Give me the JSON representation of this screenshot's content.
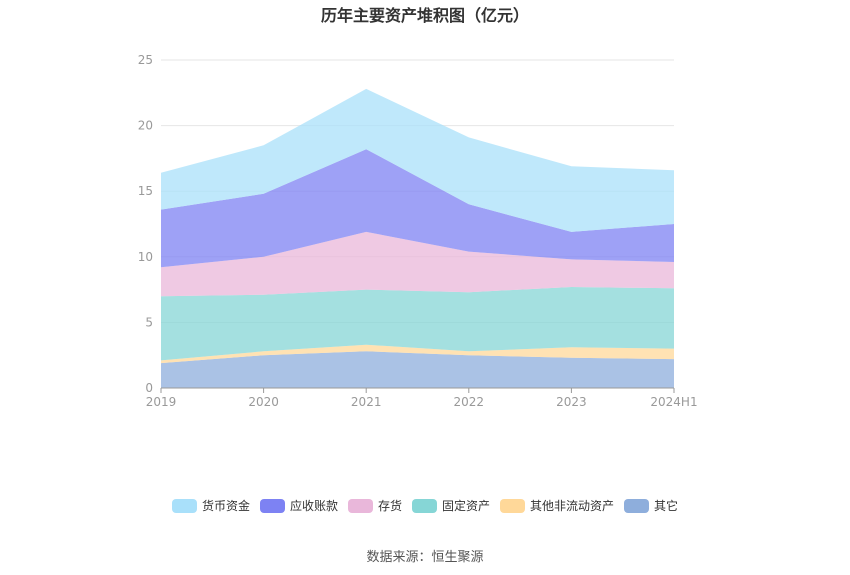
{
  "chart_data": {
    "type": "area",
    "stacked": true,
    "title": "历年主要资产堆积图（亿元）",
    "x": [
      "2019",
      "2020",
      "2021",
      "2022",
      "2023",
      "2024H1"
    ],
    "ylim": [
      0,
      25
    ],
    "yticks": [
      0,
      5,
      10,
      15,
      20,
      25
    ],
    "grid": true,
    "legend_position": "bottom",
    "series": [
      {
        "name": "其它",
        "color": "#8eaedc",
        "values": [
          1.9,
          2.5,
          2.8,
          2.5,
          2.3,
          2.2
        ]
      },
      {
        "name": "其他非流动资产",
        "color": "#ffd899",
        "values": [
          0.2,
          0.3,
          0.5,
          0.3,
          0.8,
          0.8
        ]
      },
      {
        "name": "固定资产",
        "color": "#86d6d6",
        "values": [
          4.9,
          4.3,
          4.2,
          4.5,
          4.6,
          4.6
        ]
      },
      {
        "name": "存货",
        "color": "#e9b7da",
        "values": [
          2.2,
          2.9,
          4.4,
          3.1,
          2.1,
          2.0
        ]
      },
      {
        "name": "应收账款",
        "color": "#7d82f3",
        "values": [
          4.4,
          4.8,
          6.3,
          3.6,
          2.1,
          2.9
        ]
      },
      {
        "name": "货币资金",
        "color": "#a9e0fa",
        "values": [
          2.8,
          3.7,
          4.6,
          5.1,
          5.0,
          4.1
        ]
      }
    ],
    "legend_order": [
      "货币资金",
      "应收账款",
      "存货",
      "固定资产",
      "其他非流动资产",
      "其它"
    ]
  },
  "footer": {
    "source": "数据来源：恒生聚源"
  }
}
